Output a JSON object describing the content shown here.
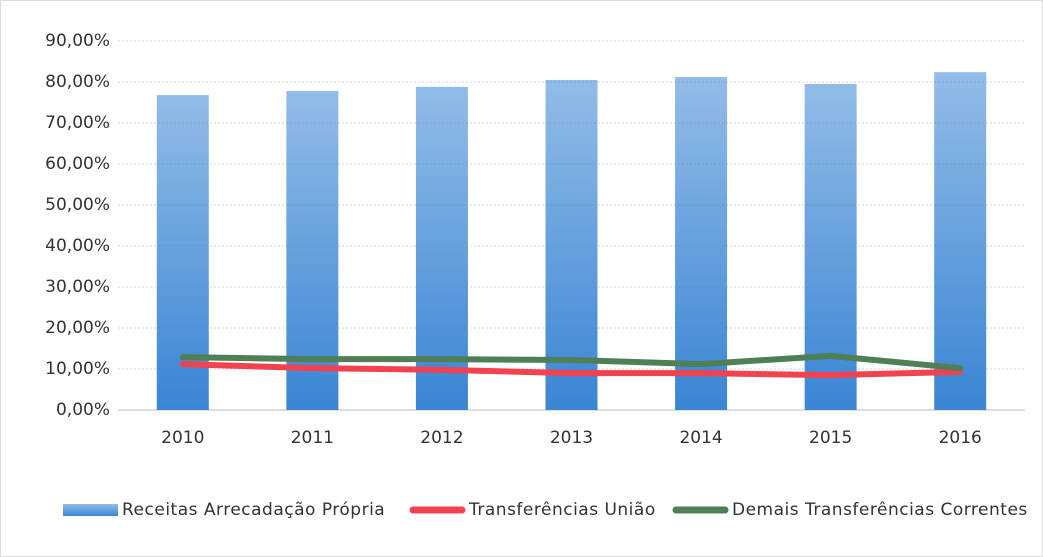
{
  "chart_data": {
    "type": "combo",
    "categories": [
      "2010",
      "2011",
      "2012",
      "2013",
      "2014",
      "2015",
      "2016"
    ],
    "series": [
      {
        "name": "Receitas Arrecadação Própria",
        "type": "bar",
        "color": "#3a85d4",
        "values": [
          76.8,
          77.8,
          78.8,
          80.5,
          81.2,
          79.5,
          82.4
        ]
      },
      {
        "name": "Transferências União",
        "type": "line",
        "color": "#f0424f",
        "values": [
          11.2,
          10.2,
          9.8,
          9.0,
          9.0,
          8.5,
          9.3
        ]
      },
      {
        "name": "Demais Transferências Correntes",
        "type": "line",
        "color": "#4e7f55",
        "values": [
          12.9,
          12.4,
          12.4,
          12.2,
          11.2,
          13.2,
          10.2
        ]
      }
    ],
    "ylim": [
      0,
      90
    ],
    "yticks": [
      {
        "value": 0,
        "label": "0,00%"
      },
      {
        "value": 10,
        "label": "10,00%"
      },
      {
        "value": 20,
        "label": "20,00%"
      },
      {
        "value": 30,
        "label": "30,00%"
      },
      {
        "value": 40,
        "label": "40,00%"
      },
      {
        "value": 50,
        "label": "50,00%"
      },
      {
        "value": 60,
        "label": "60,00%"
      },
      {
        "value": 70,
        "label": "70,00%"
      },
      {
        "value": 80,
        "label": "80,00%"
      },
      {
        "value": 90,
        "label": "90,00%"
      }
    ],
    "grid": true,
    "legend": "bottom"
  }
}
